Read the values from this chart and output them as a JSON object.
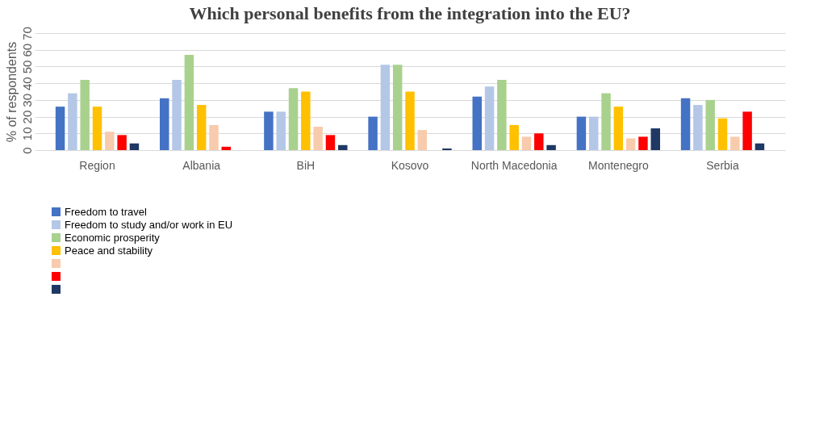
{
  "chart_data": {
    "type": "bar",
    "title": "Which personal benefits from the integration into the EU?",
    "ylabel": "% of respondents",
    "categories": [
      "Region",
      "Albania",
      "BiH",
      "Kosovo",
      "North Macedonia",
      "Montenegro",
      "Serbia"
    ],
    "series": [
      {
        "name": "Freedom to travel",
        "color": "#4472c4",
        "values": [
          26,
          31,
          23,
          20,
          32,
          20,
          31
        ]
      },
      {
        "name": "Freedom to study and/or work in EU",
        "color": "#b4c7e7",
        "values": [
          34,
          42,
          23,
          51,
          38,
          20,
          27
        ]
      },
      {
        "name": "Economic prosperity",
        "color": "#a9d18e",
        "values": [
          42,
          57,
          37,
          51,
          42,
          34,
          30
        ]
      },
      {
        "name": "Peace and stability",
        "color": "#ffc000",
        "values": [
          26,
          27,
          35,
          35,
          15,
          26,
          19
        ]
      },
      {
        "color": "#f8cbad",
        "values": [
          11,
          15,
          14,
          12,
          8,
          7,
          8
        ]
      },
      {
        "color": "#ff0000",
        "values": [
          9,
          2,
          9,
          0,
          10,
          8,
          23
        ]
      },
      {
        "color": "#1f3864",
        "values": [
          4,
          0,
          3,
          1,
          3,
          13,
          4
        ]
      }
    ],
    "ylim": [
      0,
      70
    ],
    "yticks": [
      0,
      10,
      20,
      30,
      40,
      50,
      60,
      70
    ],
    "grid": "y",
    "legend": "bottom left"
  }
}
